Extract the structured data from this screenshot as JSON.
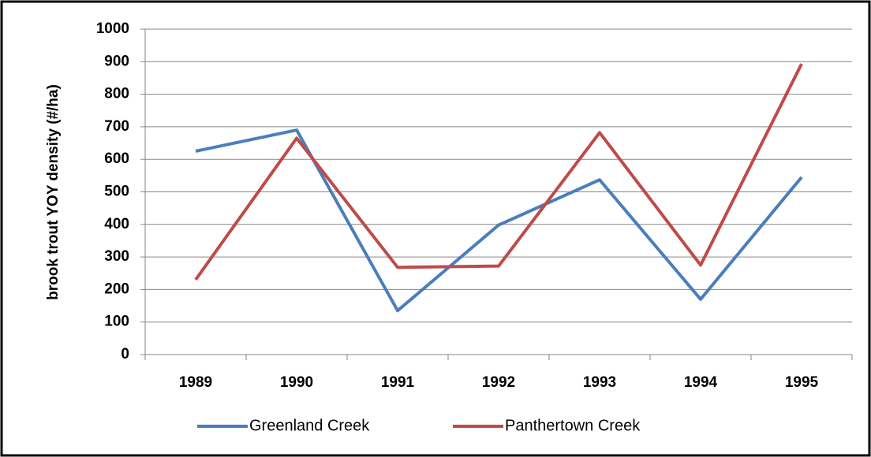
{
  "chart_data": {
    "type": "line",
    "y_label": "brook trout YOY density (#/ha)",
    "categories": [
      "1989",
      "1990",
      "1991",
      "1992",
      "1993",
      "1994",
      "1995"
    ],
    "series": [
      {
        "name": "Greenland Creek",
        "color": "#4a7ebb",
        "values": [
          625,
          690,
          135,
          398,
          537,
          170,
          545
        ]
      },
      {
        "name": "Panthertown Creek",
        "color": "#be4b48",
        "values": [
          230,
          665,
          268,
          272,
          682,
          275,
          893
        ]
      }
    ],
    "ylim": [
      0,
      1000
    ],
    "yticks": [
      0,
      100,
      200,
      300,
      400,
      500,
      600,
      700,
      800,
      900,
      1000
    ],
    "grid": true,
    "legend": "bottom"
  }
}
